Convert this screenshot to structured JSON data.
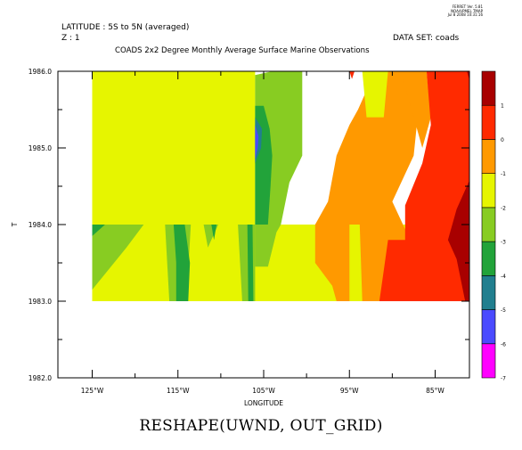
{
  "header": {
    "latitude": "LATITUDE : 5S to 5N (averaged)",
    "z": "Z : 1",
    "dataset": "DATA SET: coads",
    "title": "COADS 2x2 Degree Monthly Average Surface Marine Observations",
    "stamp": [
      "FERRET Ver. 5.81",
      "NOAA/PMEL TMAP",
      "Jul 8 2008 10:31:16"
    ]
  },
  "caption": "RESHAPE(UWND, OUT_GRID)",
  "chart_data": {
    "type": "heatmap",
    "xlabel": "LONGITUDE",
    "ylabel": "T",
    "xlim": [
      -129,
      -81
    ],
    "ylim": [
      1982.0,
      1986.0
    ],
    "x_ticks": [
      {
        "value": -125,
        "label": "125°W"
      },
      {
        "value": -115,
        "label": "115°W"
      },
      {
        "value": -105,
        "label": "105°W"
      },
      {
        "value": -95,
        "label": "95°W"
      },
      {
        "value": -85,
        "label": "85°W"
      }
    ],
    "x_minor_ticks": [
      -120,
      -110,
      -100,
      -90
    ],
    "y_ticks": [
      {
        "value": 1982.0,
        "label": "1982.0"
      },
      {
        "value": 1983.0,
        "label": "1983.0"
      },
      {
        "value": 1984.0,
        "label": "1984.0"
      },
      {
        "value": 1985.0,
        "label": "1985.0"
      },
      {
        "value": 1986.0,
        "label": "1986.0"
      }
    ],
    "y_minor_ticks": [
      1982.5,
      1983.5,
      1984.5,
      1985.5
    ],
    "colorbar": {
      "levels": [
        -7,
        -6,
        -5,
        -4,
        -3,
        -2,
        -1,
        0,
        1,
        2
      ],
      "labels": [
        "-7",
        "-6",
        "-5",
        "-4",
        "-3",
        "-2",
        "-1",
        "0",
        "1"
      ],
      "colors": [
        "#ff00ff",
        "#4a4aff",
        "#217f8f",
        "#22a33a",
        "#88cc22",
        "#e6f500",
        "#ff9900",
        "#ff2a00",
        "#a80000"
      ]
    },
    "grid": false,
    "regions": [
      {
        "color": "#e6f500",
        "points": [
          [
            -125,
            1983.0
          ],
          [
            -80.5,
            1983.0
          ],
          [
            -80.5,
            1984.0
          ],
          [
            -106,
            1984.0
          ],
          [
            -106,
            1986.0
          ],
          [
            -125,
            1986.0
          ]
        ]
      },
      {
        "color": "#88cc22",
        "points": [
          [
            -125,
            1983.15
          ],
          [
            -121,
            1983.7
          ],
          [
            -119,
            1984.0
          ],
          [
            -125,
            1984.0
          ]
        ]
      },
      {
        "color": "#22a33a",
        "points": [
          [
            -125,
            1983.85
          ],
          [
            -123.5,
            1984.0
          ],
          [
            -125,
            1984.0
          ]
        ]
      },
      {
        "color": "#88cc22",
        "points": [
          [
            -116,
            1983.0
          ],
          [
            -114,
            1983.0
          ],
          [
            -113.5,
            1984.0
          ],
          [
            -116.5,
            1984.0
          ]
        ]
      },
      {
        "color": "#22a33a",
        "points": [
          [
            -115.2,
            1983.0
          ],
          [
            -113.8,
            1983.0
          ],
          [
            -113.6,
            1983.5
          ],
          [
            -114.2,
            1984.0
          ],
          [
            -115.5,
            1984.0
          ],
          [
            -115.2,
            1983.5
          ]
        ]
      },
      {
        "color": "#88cc22",
        "points": [
          [
            -111.5,
            1983.7
          ],
          [
            -110.3,
            1984.0
          ],
          [
            -112,
            1984.0
          ]
        ]
      },
      {
        "color": "#22a33a",
        "points": [
          [
            -110.8,
            1983.8
          ],
          [
            -110.5,
            1984.0
          ],
          [
            -111.1,
            1984.0
          ]
        ]
      },
      {
        "color": "#88cc22",
        "points": [
          [
            -107.5,
            1983.0
          ],
          [
            -106,
            1983.0
          ],
          [
            -106,
            1984.0
          ],
          [
            -108,
            1984.0
          ]
        ]
      },
      {
        "color": "#22a33a",
        "points": [
          [
            -106.8,
            1983.0
          ],
          [
            -106.2,
            1983.0
          ],
          [
            -106.3,
            1984.0
          ],
          [
            -106.9,
            1984.0
          ]
        ]
      },
      {
        "color": "#88cc22",
        "points": [
          [
            -106,
            1984.0
          ],
          [
            -103,
            1984.0
          ],
          [
            -102,
            1984.55
          ],
          [
            -100.5,
            1984.9
          ],
          [
            -100.5,
            1986.0
          ],
          [
            -104,
            1986.0
          ],
          [
            -106,
            1985.95
          ]
        ]
      },
      {
        "color": "#88cc22",
        "points": [
          [
            -106,
            1983.45
          ],
          [
            -104.5,
            1983.45
          ],
          [
            -103.5,
            1983.9
          ],
          [
            -103,
            1984.0
          ],
          [
            -106,
            1984.0
          ]
        ]
      },
      {
        "color": "#22a33a",
        "points": [
          [
            -106,
            1984.0
          ],
          [
            -104.5,
            1984.0
          ],
          [
            -104.2,
            1984.5
          ],
          [
            -104,
            1984.9
          ],
          [
            -104.3,
            1985.25
          ],
          [
            -105,
            1985.55
          ],
          [
            -106,
            1985.55
          ]
        ]
      },
      {
        "color": "#217f8f",
        "points": [
          [
            -106,
            1984.8
          ],
          [
            -105.3,
            1985.0
          ],
          [
            -105.2,
            1985.25
          ],
          [
            -106,
            1985.4
          ]
        ]
      },
      {
        "color": "#4a4aff",
        "points": [
          [
            -106,
            1984.85
          ],
          [
            -105.7,
            1985.0
          ],
          [
            -105.6,
            1985.15
          ],
          [
            -106,
            1985.3
          ]
        ]
      },
      {
        "color": "#ff9900",
        "points": [
          [
            -96.5,
            1983.0
          ],
          [
            -87.5,
            1983.0
          ],
          [
            -87.5,
            1983.7
          ],
          [
            -90,
            1984.3
          ],
          [
            -87.5,
            1984.9
          ],
          [
            -86.5,
            1986.0
          ],
          [
            -92,
            1986.0
          ],
          [
            -94,
            1985.5
          ],
          [
            -95,
            1985.3
          ],
          [
            -96.5,
            1984.9
          ],
          [
            -97.5,
            1984.3
          ],
          [
            -99,
            1984.0
          ],
          [
            -99,
            1983.5
          ],
          [
            -97,
            1983.2
          ]
        ]
      },
      {
        "color": "#ff9900",
        "points": [
          [
            -86.5,
            1985.0
          ],
          [
            -85.5,
            1985.4
          ],
          [
            -86,
            1986.0
          ],
          [
            -89,
            1986.0
          ]
        ]
      },
      {
        "color": "#e6f500",
        "points": [
          [
            -95,
            1983.0
          ],
          [
            -93.5,
            1983.0
          ],
          [
            -93.8,
            1984.0
          ],
          [
            -95,
            1984.0
          ]
        ]
      },
      {
        "color": "#e6f500",
        "points": [
          [
            -93,
            1985.4
          ],
          [
            -91,
            1985.4
          ],
          [
            -90.5,
            1986.0
          ],
          [
            -93.5,
            1986.0
          ]
        ]
      },
      {
        "color": "#ff2a00",
        "points": [
          [
            -91.5,
            1983.0
          ],
          [
            -80.5,
            1983.0
          ],
          [
            -80.5,
            1986.0
          ],
          [
            -86,
            1986.0
          ],
          [
            -85.5,
            1985.3
          ],
          [
            -86.5,
            1984.8
          ],
          [
            -88.5,
            1984.25
          ],
          [
            -88.5,
            1983.8
          ],
          [
            -90.5,
            1983.8
          ],
          [
            -91,
            1983.4
          ]
        ]
      },
      {
        "color": "#ff2a00",
        "points": [
          [
            -95,
            1986.0
          ],
          [
            -94.7,
            1985.9
          ],
          [
            -94.4,
            1986.0
          ]
        ]
      },
      {
        "color": "#a80000",
        "points": [
          [
            -80.5,
            1984.7
          ],
          [
            -82.5,
            1984.2
          ],
          [
            -83.5,
            1983.8
          ],
          [
            -82.5,
            1983.55
          ],
          [
            -81.5,
            1983.0
          ],
          [
            -80.5,
            1983.0
          ]
        ]
      },
      {
        "color": "#a80000",
        "points": [
          [
            -81.3,
            1986.0
          ],
          [
            -80.5,
            1986.0
          ],
          [
            -80.5,
            1985.7
          ]
        ]
      }
    ]
  }
}
